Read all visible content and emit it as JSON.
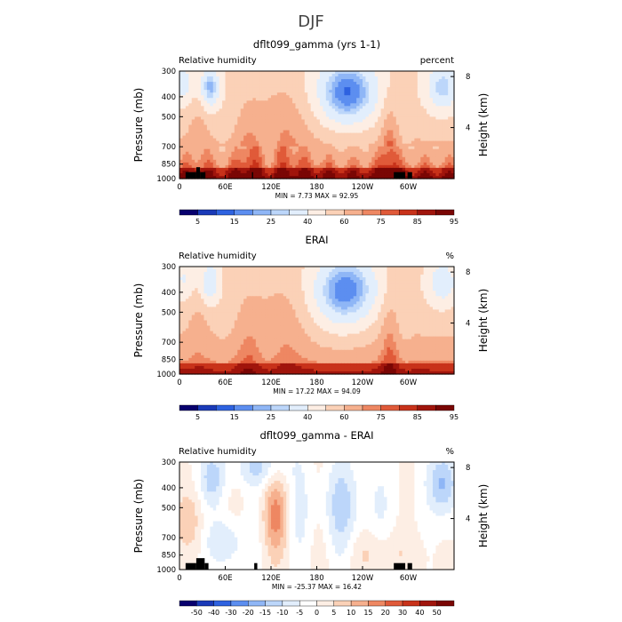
{
  "figure_title": "DJF",
  "chart_data": [
    {
      "type": "heatmap",
      "title": "dflt099_gamma (yrs 1-1)",
      "left_label": "Relative humidity",
      "right_label": "percent",
      "min_max_text": "MIN =    7.73   MAX =   92.95",
      "min": 7.73,
      "max": 92.95,
      "colorbar_ticks": [
        "5",
        "15",
        "25",
        "40",
        "60",
        "75",
        "85",
        "95"
      ],
      "kind": "model"
    },
    {
      "type": "heatmap",
      "title": "ERAI",
      "left_label": "Relative humidity",
      "right_label": "%",
      "min_max_text": "MIN =   17.22   MAX =   94.09",
      "min": 17.22,
      "max": 94.09,
      "colorbar_ticks": [
        "5",
        "15",
        "25",
        "40",
        "60",
        "75",
        "85",
        "95"
      ],
      "kind": "obs"
    },
    {
      "type": "heatmap",
      "title": "dflt099_gamma - ERAI",
      "left_label": "Relative humidity",
      "right_label": "%",
      "min_max_text": "MIN = -25.37   MAX =   16.42",
      "min": -25.37,
      "max": 16.42,
      "colorbar_ticks": [
        "-50",
        "-40",
        "-30",
        "-20",
        "-15",
        "-10",
        "-5",
        "0",
        "5",
        "10",
        "15",
        "20",
        "30",
        "40",
        "50"
      ],
      "kind": "diff"
    }
  ],
  "shared_axes": {
    "ylabel": "Pressure (mb)",
    "ylabel_right": "Height (km)",
    "y_ticks": [
      "300",
      "400",
      "500",
      "700",
      "850",
      "1000"
    ],
    "y_values": [
      300,
      400,
      500,
      700,
      850,
      1000
    ],
    "y_right_ticks": [
      "8",
      "4"
    ],
    "y_right_values": [
      8,
      4
    ],
    "x_ticks": [
      "0",
      "60E",
      "120E",
      "180",
      "120W",
      "60W"
    ],
    "x_values": [
      0,
      60,
      120,
      180,
      240,
      300
    ],
    "xlim": [
      0,
      360
    ],
    "ylim": [
      1000,
      300
    ],
    "log_pressure": true
  },
  "colors": {
    "model_scale": [
      "#08006e",
      "#1a3ab8",
      "#2e62e0",
      "#5c8ef0",
      "#8fb6f6",
      "#bcd6fa",
      "#e2eefc",
      "#fdeee4",
      "#fbd1b7",
      "#f6b08e",
      "#ee8762",
      "#e05a39",
      "#c8321a",
      "#a0150c",
      "#7a0604"
    ],
    "diff_scale": [
      "#08006e",
      "#1a3ab8",
      "#2e62e0",
      "#5c8ef0",
      "#8fb6f6",
      "#bcd6fa",
      "#e2eefc",
      "#ffffff",
      "#fdeee4",
      "#fbd1b7",
      "#f6b08e",
      "#ee8762",
      "#e05a39",
      "#c8321a",
      "#a0150c",
      "#7a0604"
    ],
    "land": "#000000"
  }
}
